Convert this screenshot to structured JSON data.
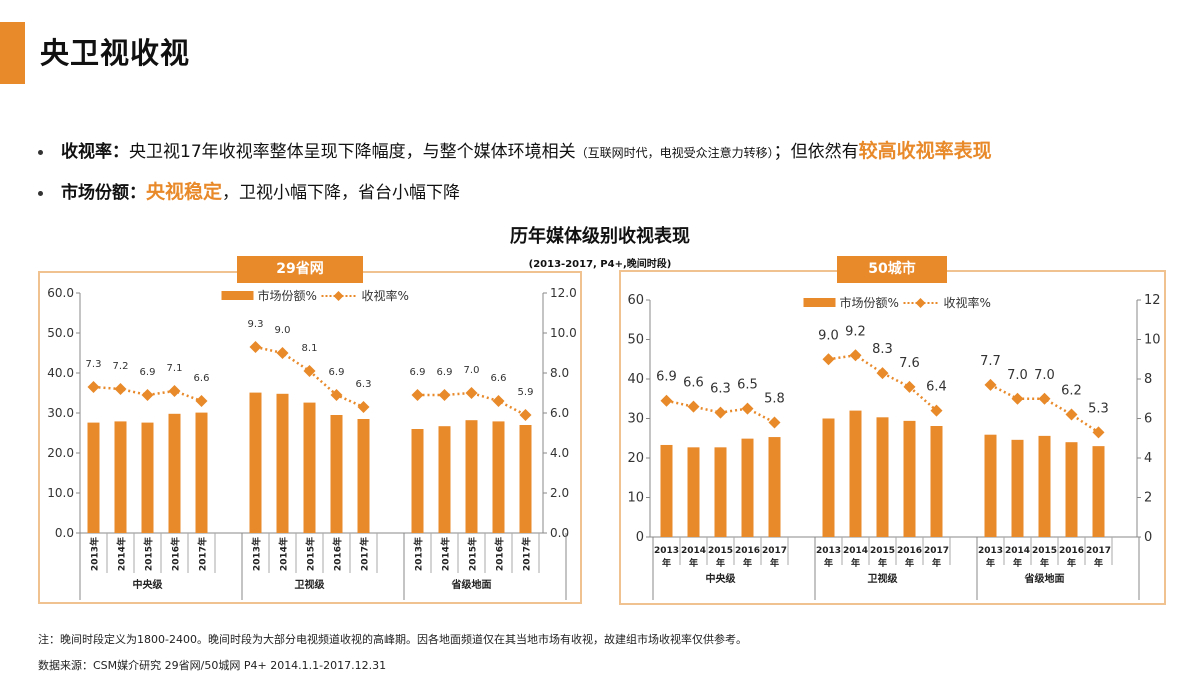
{
  "header": {
    "title": "央卫视收视"
  },
  "bullets": [
    {
      "label": "收视率：",
      "text": "央卫视17年收视率整体呈现下降幅度，与整个媒体环境相关",
      "small": "（互联网时代，电视受众注意力转移）",
      "text2": "；但依然有",
      "highlight": "较高收视率表现"
    },
    {
      "label": "市场份额：",
      "highlight": "央视稳定",
      "text": "，卫视小幅下降，省台小幅下降"
    }
  ],
  "chart_heading": {
    "title": "历年媒体级别收视表现",
    "subtitle": "(2013-2017, P4+,晚间时段)"
  },
  "colors": {
    "accent": "#e8892a",
    "panel_border": "#f0c28f"
  },
  "chart_data": [
    {
      "type": "bar+line",
      "title": "29省网",
      "groups": [
        "中央级",
        "卫视级",
        "省级地面"
      ],
      "categories": [
        "2013年",
        "2014年",
        "2015年",
        "2016年",
        "2017年"
      ],
      "left_axis": {
        "ylim": [
          0,
          60
        ],
        "ticks": [
          "0.0",
          "10.0",
          "20.0",
          "30.0",
          "40.0",
          "50.0",
          "60.0"
        ]
      },
      "right_axis": {
        "ylim": [
          0,
          12
        ],
        "ticks": [
          "0.0",
          "2.0",
          "4.0",
          "6.0",
          "8.0",
          "10.0",
          "12.0"
        ]
      },
      "legend": {
        "position": "top-center",
        "bar": "市场份额%",
        "line": "收视率%"
      },
      "series": [
        {
          "name": "市场份额%",
          "type": "bar",
          "axis": "left",
          "values": [
            [
              27.6,
              27.9,
              27.6,
              29.8,
              30.1
            ],
            [
              35.1,
              34.8,
              32.6,
              29.5,
              28.5
            ],
            [
              26.0,
              26.7,
              28.2,
              27.9,
              27.0
            ]
          ]
        },
        {
          "name": "收视率%",
          "type": "line",
          "axis": "right",
          "values": [
            [
              7.3,
              7.2,
              6.9,
              7.1,
              6.6
            ],
            [
              9.3,
              9.0,
              8.1,
              6.9,
              6.3
            ],
            [
              6.9,
              6.9,
              7.0,
              6.6,
              5.9
            ]
          ],
          "labels": [
            [
              "7.3",
              "7.2",
              "6.9",
              "7.1",
              "6.6"
            ],
            [
              "9.3",
              "9.0",
              "8.1",
              "6.9",
              "6.3"
            ],
            [
              "6.9",
              "6.9",
              "7.0",
              "6.6",
              "5.9"
            ]
          ]
        }
      ]
    },
    {
      "type": "bar+line",
      "title": "50城市",
      "groups": [
        "中央级",
        "卫视级",
        "省级地面"
      ],
      "categories": [
        "2013年",
        "2014年",
        "2015年",
        "2016年",
        "2017年"
      ],
      "left_axis": {
        "ylim": [
          0,
          60
        ],
        "ticks": [
          "0",
          "10",
          "20",
          "30",
          "40",
          "50",
          "60"
        ]
      },
      "right_axis": {
        "ylim": [
          0,
          12
        ],
        "ticks": [
          "0",
          "2",
          "4",
          "6",
          "8",
          "10",
          "12"
        ]
      },
      "legend": {
        "position": "top-center",
        "bar": "市场份额%",
        "line": "收视率%"
      },
      "series": [
        {
          "name": "市场份额%",
          "type": "bar",
          "axis": "left",
          "values": [
            [
              23.3,
              22.7,
              22.7,
              24.9,
              25.3
            ],
            [
              30.0,
              32.0,
              30.3,
              29.4,
              28.1
            ],
            [
              25.9,
              24.6,
              25.6,
              24.0,
              23.0
            ]
          ]
        },
        {
          "name": "收视率%",
          "type": "line",
          "axis": "right",
          "values": [
            [
              6.9,
              6.6,
              6.3,
              6.5,
              5.8
            ],
            [
              9.0,
              9.2,
              8.3,
              7.6,
              6.4
            ],
            [
              7.7,
              7.0,
              7.0,
              6.2,
              5.3
            ]
          ],
          "labels": [
            [
              "6.9",
              "6.6",
              "6.3",
              "6.5",
              "5.8"
            ],
            [
              "9.0",
              "9.2",
              "8.3",
              "7.6",
              "6.4"
            ],
            [
              "7.7",
              "7.0",
              "7.0",
              "6.2",
              "5.3"
            ]
          ]
        }
      ]
    }
  ],
  "footer": {
    "note": "注：晚间时段定义为1800-2400。晚间时段为大部分电视频道收视的高峰期。因各地面频道仅在其当地市场有收视，故建组市场收视率仅供参考。",
    "source": "数据来源：CSM媒介研究 29省网/50城网 P4+ 2014.1.1-2017.12.31"
  }
}
